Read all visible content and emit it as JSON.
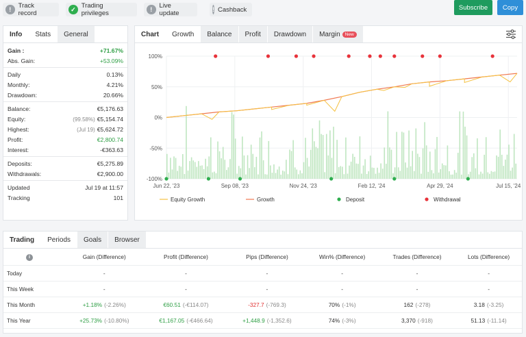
{
  "top": {
    "badges": [
      {
        "label": "Track record",
        "icon": "!",
        "status": "info"
      },
      {
        "label": "Trading privileges",
        "icon": "✓",
        "status": "ok"
      },
      {
        "label": "Live update",
        "icon": "!",
        "status": "info"
      },
      {
        "label": "Cashback",
        "icon": "!",
        "status": "info"
      }
    ],
    "subscribe_label": "Subscribe",
    "copy_label": "Copy",
    "subscribe_color": "#1f9b5e",
    "copy_color": "#2f8fd8"
  },
  "stats": {
    "tabs": [
      "Info",
      "Stats",
      "General"
    ],
    "groups": [
      [
        {
          "label": "Gain :",
          "value": "+71.67%",
          "color": "green",
          "bold": true
        },
        {
          "label": "Abs. Gain:",
          "value": "+53.09%",
          "color": "green"
        }
      ],
      [
        {
          "label": "Daily",
          "value": "0.13%"
        },
        {
          "label": "Monthly:",
          "value": "4.21%"
        },
        {
          "label": "Drawdown:",
          "value": "20.66%"
        }
      ],
      [
        {
          "label": "Balance:",
          "value": "€5,176.63"
        },
        {
          "label": "Equity:",
          "note": "(99.58%)",
          "value": "€5,154.74"
        },
        {
          "label": "Highest:",
          "note": "(Jul 19)",
          "value": "€5,624.72"
        },
        {
          "label": "Profit:",
          "value": "€2,800.74",
          "color": "green"
        },
        {
          "label": "Interest:",
          "value": "-€363.63"
        }
      ],
      [
        {
          "label": "Deposits:",
          "value": "€5,275.89"
        },
        {
          "label": "Withdrawals:",
          "value": "€2,900.00"
        }
      ],
      [
        {
          "label": "Updated",
          "value": "Jul 19 at 11:57"
        },
        {
          "label": "Tracking",
          "value": "101"
        }
      ]
    ]
  },
  "chart_panel": {
    "tabs": [
      "Chart",
      "Growth",
      "Balance",
      "Profit",
      "Drawdown",
      "Margin"
    ],
    "new_badge": "New",
    "settings_icon": "sliders-icon"
  },
  "chart_data": {
    "type": "line",
    "y_ticks": [
      "100%",
      "50%",
      "0%",
      "-50%",
      "-100%"
    ],
    "ylim": [
      -100,
      100
    ],
    "x_ticks": [
      "Jun 22, '23",
      "Sep 08, '23",
      "Nov 24, '23",
      "Feb 12, '24",
      "Apr 29, '24",
      "Jul 15, '24"
    ],
    "legend": [
      "Equity Growth",
      "Growth",
      "Deposit",
      "Withdrawal"
    ],
    "colors": {
      "equity": "#f5c242",
      "growth": "#f07850",
      "deposit": "#2fae4f",
      "withdrawal": "#e8333b",
      "bars": "#bfe6c0"
    },
    "growth": [
      [
        0,
        0
      ],
      [
        5,
        3
      ],
      [
        10,
        6
      ],
      [
        15,
        9
      ],
      [
        20,
        11
      ],
      [
        25,
        14
      ],
      [
        30,
        17
      ],
      [
        35,
        20
      ],
      [
        40,
        23
      ],
      [
        45,
        28
      ],
      [
        50,
        34
      ],
      [
        55,
        41
      ],
      [
        60,
        46
      ],
      [
        65,
        50
      ],
      [
        70,
        55
      ],
      [
        75,
        58
      ],
      [
        80,
        60
      ],
      [
        85,
        63
      ],
      [
        90,
        66
      ],
      [
        95,
        69
      ],
      [
        100,
        72
      ]
    ],
    "equity_dips": [
      [
        13,
        -3
      ],
      [
        30,
        13
      ],
      [
        40,
        20
      ],
      [
        48,
        10
      ],
      [
        62,
        44
      ],
      [
        68,
        49
      ],
      [
        75,
        51
      ],
      [
        85,
        57
      ],
      [
        98,
        58
      ]
    ],
    "deposit_x": [
      0,
      12,
      21,
      47,
      65,
      86
    ],
    "withdrawal_x": [
      14,
      29,
      37,
      42,
      52,
      58,
      61,
      65,
      73,
      78,
      93
    ]
  },
  "periods": {
    "tabs": [
      "Trading",
      "Periods",
      "Goals",
      "Browser"
    ],
    "info_icon": "i",
    "headers": [
      "Gain (Difference)",
      "Profit (Difference)",
      "Pips (Difference)",
      "Win% (Difference)",
      "Trades (Difference)",
      "Lots (Difference)"
    ],
    "rows": [
      {
        "label": "Today",
        "cells": [
          {
            "v": "-"
          },
          {
            "v": "-"
          },
          {
            "v": "-"
          },
          {
            "v": "-"
          },
          {
            "v": "-"
          },
          {
            "v": "-"
          }
        ]
      },
      {
        "label": "This Week",
        "cells": [
          {
            "v": "-"
          },
          {
            "v": "-"
          },
          {
            "v": "-"
          },
          {
            "v": "-"
          },
          {
            "v": "-"
          },
          {
            "v": "-"
          }
        ]
      },
      {
        "label": "This Month",
        "cells": [
          {
            "v": "+1.18%",
            "d": "(-2.26%)",
            "c": "green"
          },
          {
            "v": "€60.51",
            "d": "(-€114.07)",
            "c": "green"
          },
          {
            "v": "-327.7",
            "d": "(-769.3)",
            "c": "red"
          },
          {
            "v": "70%",
            "d": "(-1%)"
          },
          {
            "v": "162",
            "d": "(-278)"
          },
          {
            "v": "3.18",
            "d": "(-3.25)"
          }
        ]
      },
      {
        "label": "This Year",
        "cells": [
          {
            "v": "+25.73%",
            "d": "(-10.80%)",
            "c": "green"
          },
          {
            "v": "€1,167.05",
            "d": "(-€466.64)",
            "c": "green"
          },
          {
            "v": "+1,448.9",
            "d": "(-1,352.6)",
            "c": "green"
          },
          {
            "v": "74%",
            "d": "(-3%)"
          },
          {
            "v": "3,370",
            "d": "(-918)"
          },
          {
            "v": "51.13",
            "d": "(-11.14)"
          }
        ]
      }
    ]
  }
}
